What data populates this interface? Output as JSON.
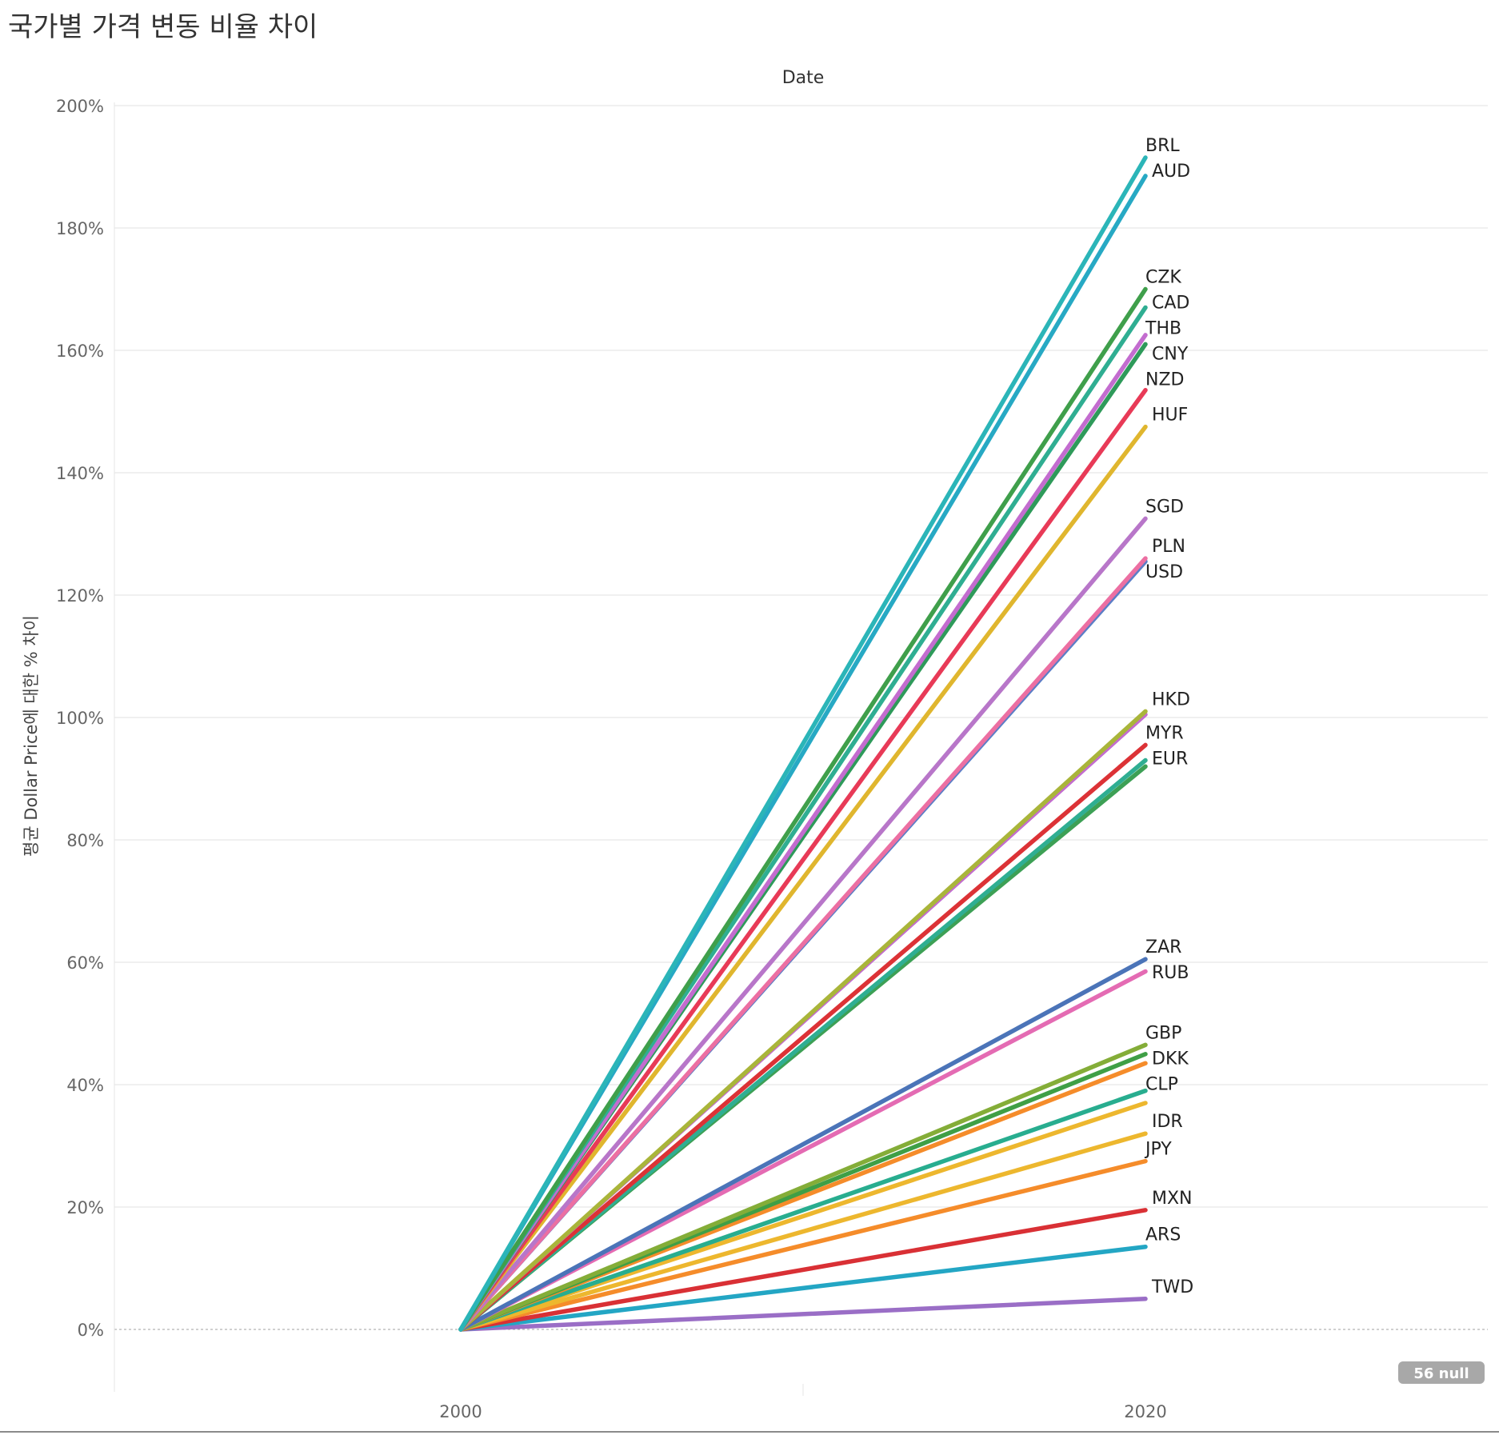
{
  "title": "국가별 가격 변동 비율 차이",
  "null_badge": "56 null",
  "chart_data": {
    "type": "line",
    "header": "Date",
    "ylabel": "평균 Dollar Price에 대한 % 차이",
    "xlabel": "",
    "x": [
      "2000",
      "2020"
    ],
    "ylim": [
      -10,
      203
    ],
    "yticks": [
      "0%",
      "20%",
      "40%",
      "60%",
      "80%",
      "100%",
      "120%",
      "140%",
      "160%",
      "180%",
      "200%"
    ],
    "grid": true,
    "series": [
      {
        "name": "BRL",
        "values": [
          0,
          191.5
        ],
        "color": "#2bb5b8"
      },
      {
        "name": "AUD",
        "values": [
          0,
          188.5
        ],
        "color": "#27a9c4"
      },
      {
        "name": "CZK",
        "values": [
          0,
          170.0
        ],
        "color": "#3f9f4b"
      },
      {
        "name": "CAD",
        "values": [
          0,
          167.0
        ],
        "color": "#2fae92"
      },
      {
        "name": "THB",
        "values": [
          0,
          162.5
        ],
        "color": "#c36ccf"
      },
      {
        "name": "CNY",
        "values": [
          0,
          161.0
        ],
        "color": "#2e9a5a"
      },
      {
        "name": "NZD",
        "values": [
          0,
          153.5
        ],
        "color": "#e83a57"
      },
      {
        "name": "HUF",
        "values": [
          0,
          147.5
        ],
        "color": "#e0b62e"
      },
      {
        "name": "SGD",
        "values": [
          0,
          132.5
        ],
        "color": "#b876c9"
      },
      {
        "name": "PLN",
        "values": [
          0,
          126.0
        ],
        "color": "#ec6fa2"
      },
      {
        "name": "USD",
        "values": [
          0,
          125.5
        ],
        "color": "#5b7ec7"
      },
      {
        "name": "HKD",
        "values": [
          0,
          101.0
        ],
        "color": "#a9b53a"
      },
      {
        "name": "MYR",
        "values": [
          0,
          95.5
        ],
        "color": "#dc3236"
      },
      {
        "name": "EUR",
        "values": [
          0,
          92.0
        ],
        "color": "#3da055"
      },
      {
        "name": "ZAR",
        "values": [
          0,
          60.5
        ],
        "color": "#4b74b8"
      },
      {
        "name": "RUB",
        "values": [
          0,
          58.5
        ],
        "color": "#e46bb3"
      },
      {
        "name": "GBP",
        "values": [
          0,
          46.5
        ],
        "color": "#84ad38"
      },
      {
        "name": "DKK",
        "values": [
          0,
          45.0
        ],
        "color": "#3f9f46"
      },
      {
        "name": "CLP",
        "values": [
          0,
          39.0
        ],
        "color": "#28ad8f"
      },
      {
        "name": "IDR",
        "values": [
          0,
          32.0
        ],
        "color": "#edb72e"
      },
      {
        "name": "JPY",
        "values": [
          0,
          27.5
        ],
        "color": "#f58c2a"
      },
      {
        "name": "MXN",
        "values": [
          0,
          19.5
        ],
        "color": "#d93035"
      },
      {
        "name": "ARS",
        "values": [
          0,
          13.5
        ],
        "color": "#23a6c4"
      },
      {
        "name": "TWD",
        "values": [
          0,
          5.0
        ],
        "color": "#9a6ec6"
      }
    ],
    "extra_lines": [
      {
        "values": [
          0,
          43.5
        ],
        "color": "#f58c2a"
      },
      {
        "values": [
          0,
          37.0
        ],
        "color": "#edb72e"
      },
      {
        "values": [
          0,
          100.5
        ],
        "color": "#c36ccf"
      },
      {
        "values": [
          0,
          93.0
        ],
        "color": "#2fae92"
      }
    ]
  }
}
